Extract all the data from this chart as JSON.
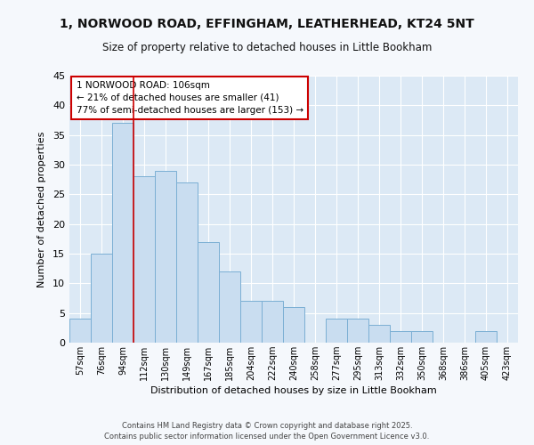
{
  "title_line1": "1, NORWOOD ROAD, EFFINGHAM, LEATHERHEAD, KT24 5NT",
  "title_line2": "Size of property relative to detached houses in Little Bookham",
  "xlabel": "Distribution of detached houses by size in Little Bookham",
  "ylabel": "Number of detached properties",
  "categories": [
    "57sqm",
    "76sqm",
    "94sqm",
    "112sqm",
    "130sqm",
    "149sqm",
    "167sqm",
    "185sqm",
    "204sqm",
    "222sqm",
    "240sqm",
    "258sqm",
    "277sqm",
    "295sqm",
    "313sqm",
    "332sqm",
    "350sqm",
    "368sqm",
    "386sqm",
    "405sqm",
    "423sqm"
  ],
  "values": [
    4,
    15,
    37,
    28,
    29,
    27,
    17,
    12,
    7,
    7,
    6,
    0,
    4,
    4,
    3,
    2,
    2,
    0,
    0,
    2,
    0
  ],
  "bar_color": "#c9ddf0",
  "bar_edge_color": "#7bafd4",
  "vline_color": "#cc0000",
  "vline_position": 2.5,
  "annotation_lines": [
    "1 NORWOOD ROAD: 106sqm",
    "← 21% of detached houses are smaller (41)",
    "77% of semi-detached houses are larger (153) →"
  ],
  "annotation_box_facecolor": "#ffffff",
  "annotation_box_edgecolor": "#cc0000",
  "ylim": [
    0,
    45
  ],
  "yticks": [
    0,
    5,
    10,
    15,
    20,
    25,
    30,
    35,
    40,
    45
  ],
  "plot_bg_color": "#dce9f5",
  "fig_bg_color": "#f5f8fc",
  "grid_color": "#ffffff",
  "footer": "Contains HM Land Registry data © Crown copyright and database right 2025.\nContains public sector information licensed under the Open Government Licence v3.0."
}
